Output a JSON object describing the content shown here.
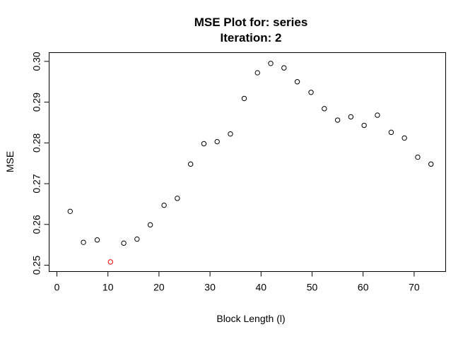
{
  "chart_data": {
    "type": "scatter",
    "title": "MSE Plot for: series",
    "subtitle": "Iteration: 2",
    "xlabel": "Block Length (l)",
    "ylabel": "MSE",
    "xlim": [
      0,
      75
    ],
    "ylim": [
      0.25,
      0.3
    ],
    "xticks": [
      0,
      10,
      20,
      30,
      40,
      50,
      60,
      70
    ],
    "yticks": [
      0.25,
      0.26,
      0.27,
      0.28,
      0.29,
      0.3
    ],
    "ytick_labels": [
      "0.25",
      "0.26",
      "0.27",
      "0.28",
      "0.29",
      "0.30"
    ],
    "grid": false,
    "point_color": "#000000",
    "highlight_color": "#ff0000",
    "series": [
      {
        "x": [
          2.6,
          5.2,
          7.9,
          10.5,
          13.1,
          15.7,
          18.3,
          21.0,
          23.6,
          26.2,
          28.8,
          31.4,
          34.0,
          36.7,
          39.3,
          41.9,
          44.5,
          47.1,
          49.8,
          52.4,
          55.0,
          57.6,
          60.2,
          62.8,
          65.5,
          68.1,
          70.7,
          73.3
        ],
        "y": [
          0.2632,
          0.2556,
          0.2562,
          0.2508,
          0.2554,
          0.2564,
          0.2599,
          0.2647,
          0.2664,
          0.2748,
          0.2798,
          0.2803,
          0.2822,
          0.2909,
          0.2972,
          0.2995,
          0.2984,
          0.295,
          0.2924,
          0.2884,
          0.2856,
          0.2864,
          0.2843,
          0.2868,
          0.2826,
          0.2812,
          0.2765,
          0.2748
        ]
      }
    ],
    "highlight_index": 3
  }
}
